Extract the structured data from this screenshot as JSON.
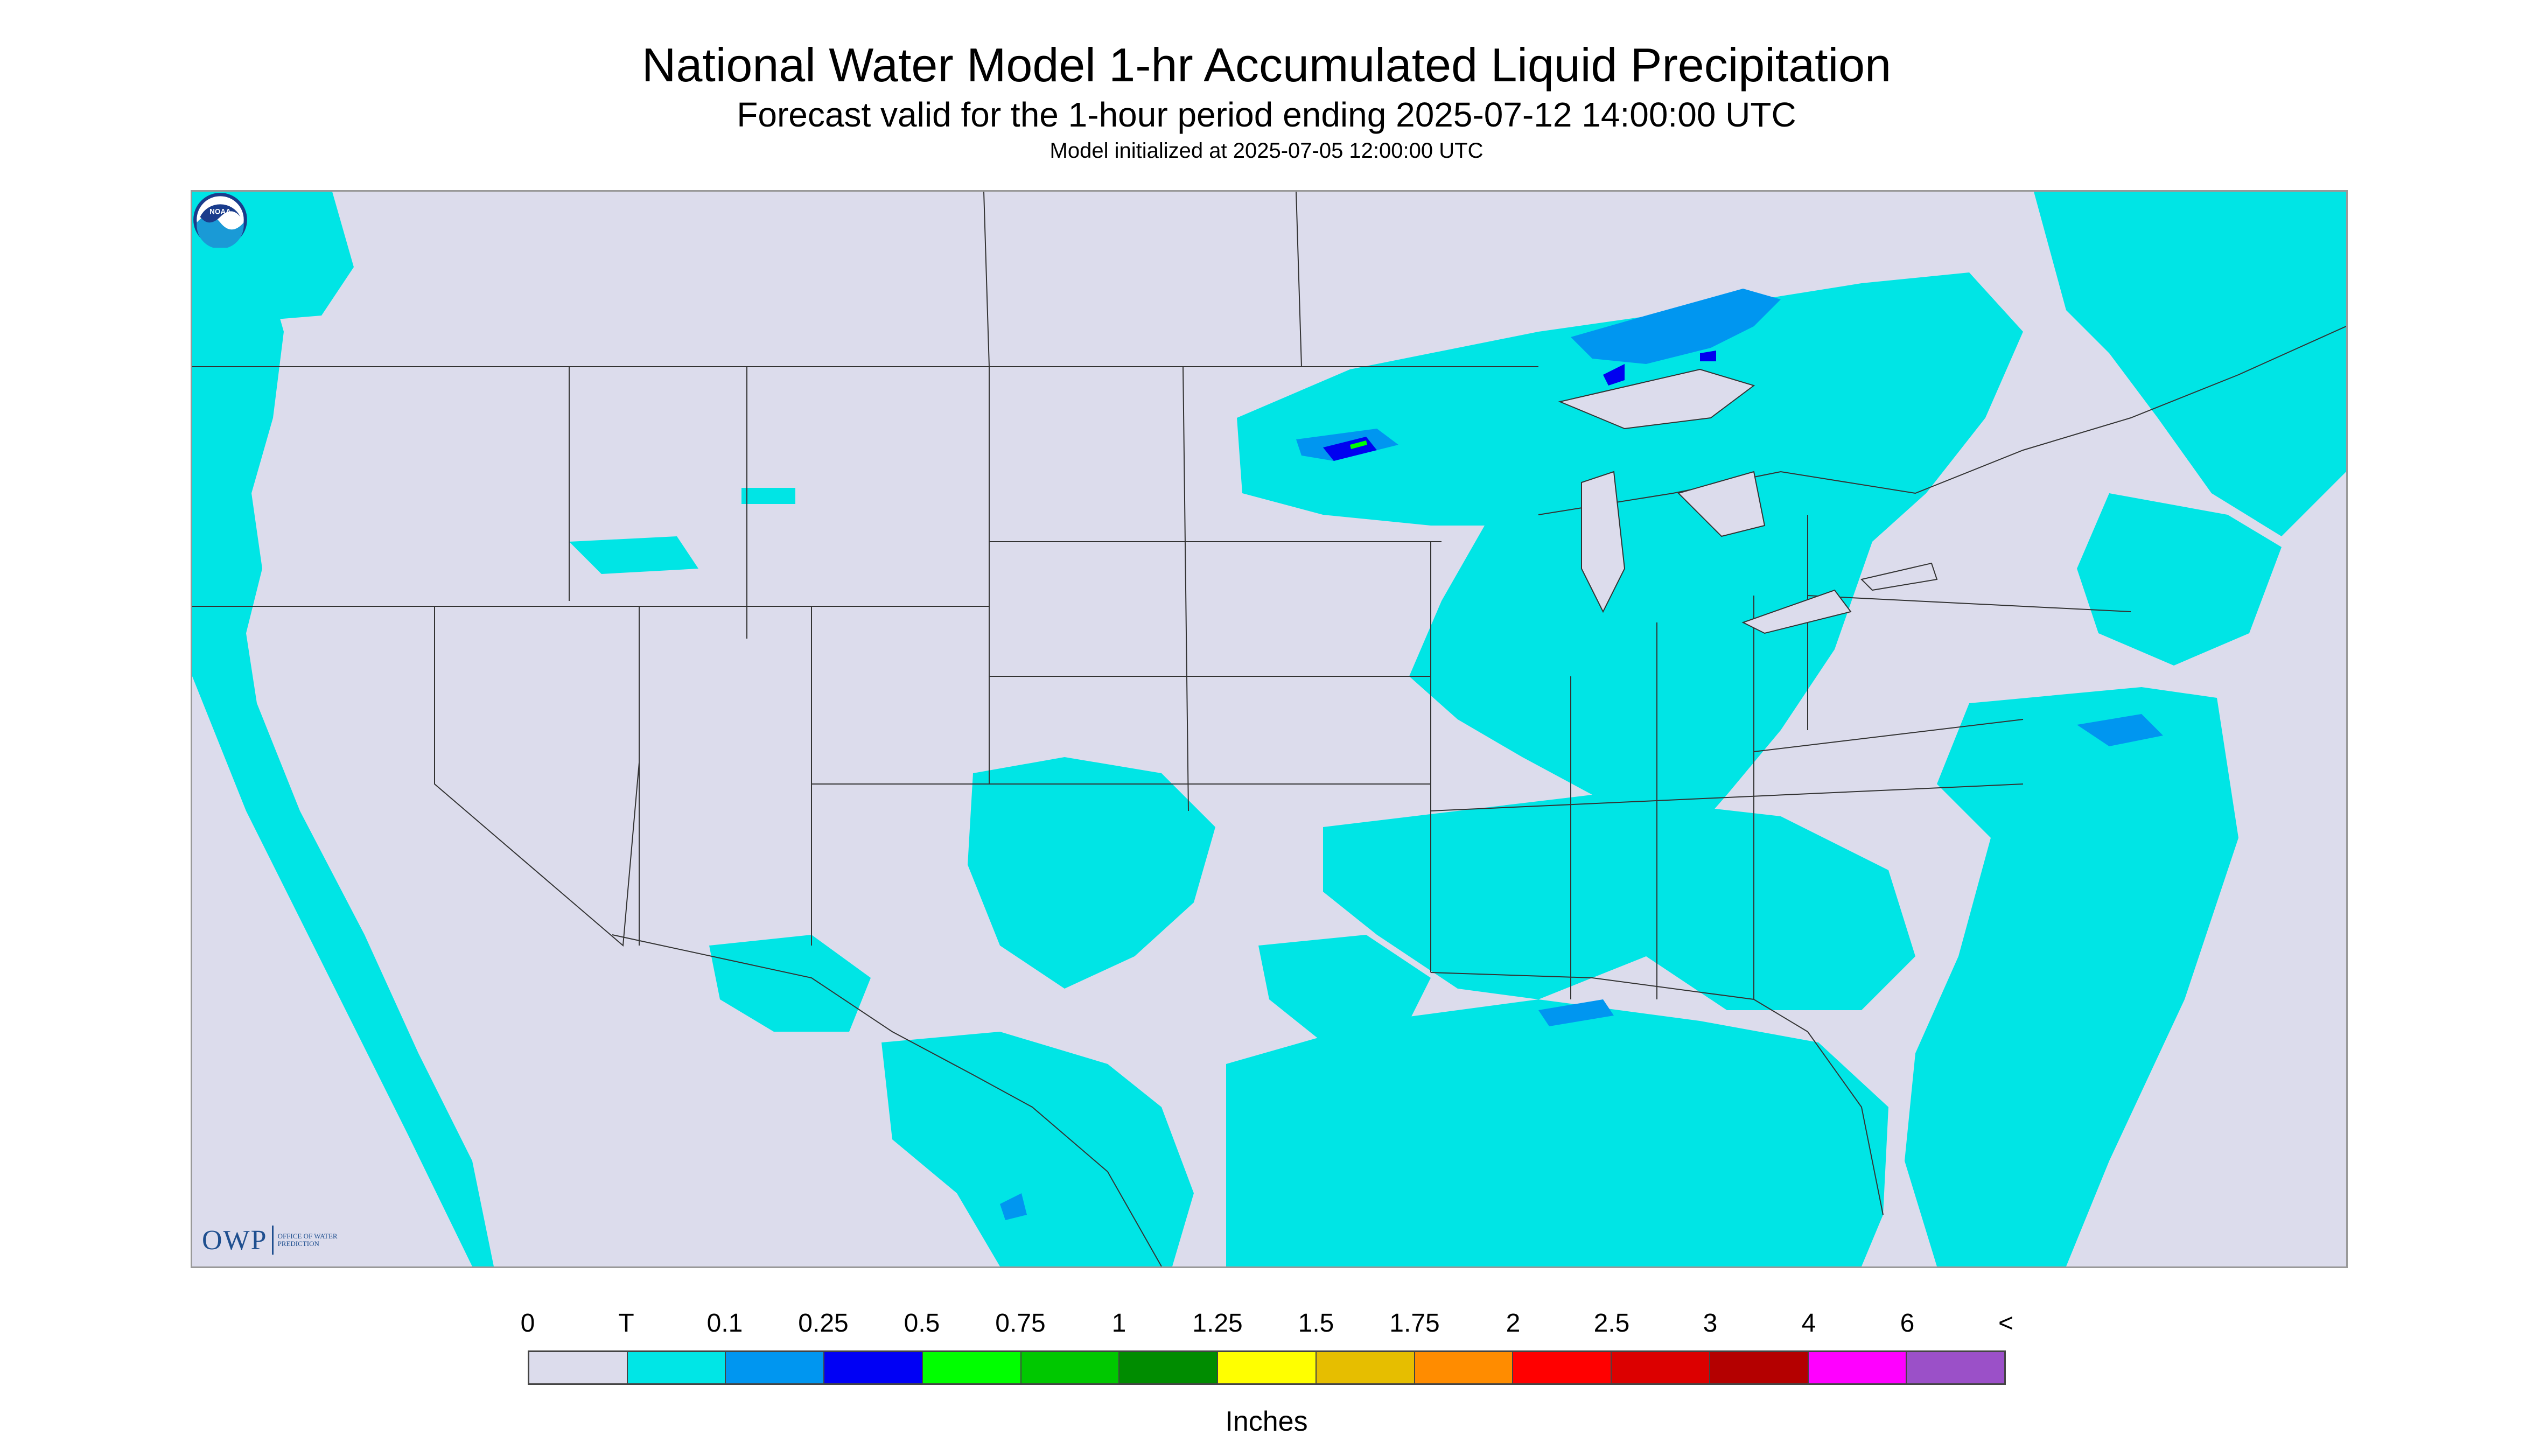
{
  "header": {
    "title": "National Water Model 1-hr Accumulated Liquid Precipitation",
    "subtitle": "Forecast valid for the 1-hour period ending 2025-07-12 14:00:00 UTC",
    "init": "Model initialized at 2025-07-05 12:00:00 UTC"
  },
  "logos": {
    "owp": "OWP",
    "owp_sub": "Office of Water Prediction",
    "noaa": "NOAA"
  },
  "map": {
    "background_color": "#dcdcec",
    "trace_color": "#00e5e5",
    "light_blue_color": "#0096f0",
    "blue_color": "#0000f0",
    "green_color": "#00ff00"
  },
  "legend": {
    "labels": [
      "0",
      "T",
      "0.1",
      "0.25",
      "0.5",
      "0.75",
      "1",
      "1.25",
      "1.5",
      "1.75",
      "2",
      "2.5",
      "3",
      "4",
      "6",
      "<"
    ],
    "colors": [
      "#dcdcec",
      "#00e6e6",
      "#0096f0",
      "#0000f5",
      "#00ff00",
      "#00c800",
      "#008c00",
      "#ffff00",
      "#e6be00",
      "#ff8c00",
      "#ff0000",
      "#dc0000",
      "#b40000",
      "#ff00ff",
      "#9b50c8"
    ],
    "units": "Inches"
  }
}
